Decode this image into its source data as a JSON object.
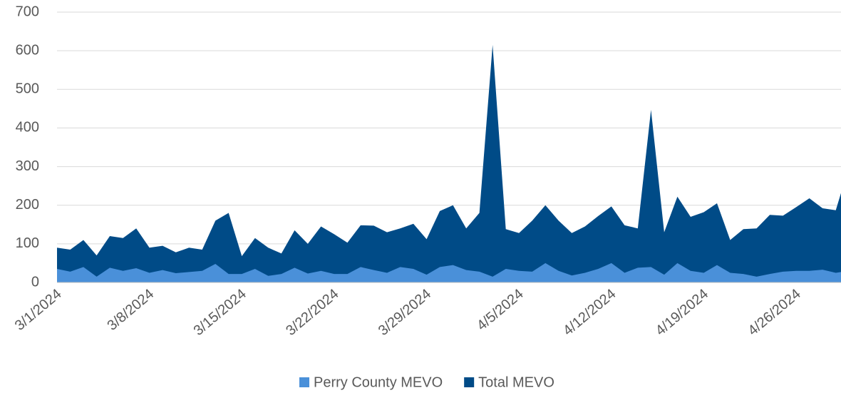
{
  "chart_data": {
    "type": "area",
    "categories": [
      "3/1/2024",
      null,
      null,
      null,
      null,
      null,
      null,
      "3/8/2024",
      null,
      null,
      null,
      null,
      null,
      null,
      "3/15/2024",
      null,
      null,
      null,
      null,
      null,
      null,
      "3/22/2024",
      null,
      null,
      null,
      null,
      null,
      null,
      "3/29/2024",
      null,
      null,
      null,
      null,
      null,
      null,
      "4/5/2024",
      null,
      null,
      null,
      null,
      null,
      null,
      "4/12/2024",
      null,
      null,
      null,
      null,
      null,
      null,
      "4/19/2024",
      null,
      null,
      null,
      null,
      null,
      null,
      "4/26/2024",
      null,
      null,
      null,
      null
    ],
    "series": [
      {
        "name": "Total MEVO",
        "color": "#004b87",
        "values": [
          90,
          85,
          110,
          70,
          120,
          115,
          140,
          90,
          95,
          78,
          90,
          85,
          160,
          180,
          68,
          115,
          90,
          75,
          135,
          100,
          145,
          125,
          103,
          148,
          147,
          130,
          140,
          152,
          112,
          185,
          200,
          140,
          180,
          615,
          138,
          128,
          160,
          200,
          160,
          128,
          145,
          172,
          197,
          148,
          140,
          447,
          130,
          222,
          170,
          182,
          205,
          110,
          138,
          140,
          175,
          173,
          195,
          218,
          192,
          187,
          300
        ]
      },
      {
        "name": "Perry County MEVO",
        "color": "#4a90d9",
        "values": [
          35,
          28,
          40,
          15,
          38,
          30,
          37,
          25,
          32,
          24,
          27,
          30,
          48,
          22,
          22,
          35,
          17,
          22,
          38,
          23,
          30,
          22,
          22,
          40,
          32,
          25,
          40,
          35,
          20,
          40,
          45,
          32,
          28,
          15,
          35,
          30,
          28,
          50,
          30,
          18,
          25,
          35,
          50,
          25,
          38,
          40,
          20,
          50,
          30,
          25,
          45,
          25,
          22,
          15,
          22,
          28,
          30,
          30,
          33,
          25,
          30
        ]
      }
    ],
    "legend_order": [
      1,
      0
    ],
    "ylim": [
      0,
      700
    ],
    "yticks": [
      0,
      100,
      200,
      300,
      400,
      500,
      600,
      700
    ],
    "grid": true
  }
}
